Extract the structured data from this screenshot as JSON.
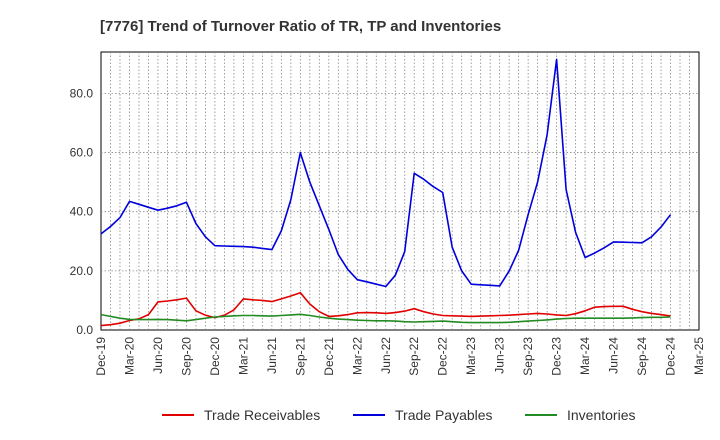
{
  "chart_data": {
    "type": "line",
    "title": "[7776]  Trend of Turnover Ratio of TR, TP and Inventories",
    "xlabel": "",
    "ylabel": "",
    "ylim": [
      0,
      94
    ],
    "yticks": [
      0,
      20,
      40,
      60,
      80
    ],
    "ytick_labels": [
      "0.0",
      "20.0",
      "40.0",
      "60.0",
      "80.0"
    ],
    "x_tick_labels": [
      "Dec-19",
      "Mar-20",
      "Jun-20",
      "Sep-20",
      "Dec-20",
      "Mar-21",
      "Jun-21",
      "Sep-21",
      "Dec-21",
      "Mar-22",
      "Jun-22",
      "Sep-22",
      "Dec-22",
      "Mar-23",
      "Jun-23",
      "Sep-23",
      "Dec-23",
      "Mar-24",
      "Jun-24",
      "Sep-24",
      "Dec-24",
      "Mar-25"
    ],
    "x": [
      "Dec-19",
      "Jan-20",
      "Feb-20",
      "Mar-20",
      "Apr-20",
      "May-20",
      "Jun-20",
      "Jul-20",
      "Aug-20",
      "Sep-20",
      "Oct-20",
      "Nov-20",
      "Dec-20",
      "Jan-21",
      "Feb-21",
      "Mar-21",
      "Apr-21",
      "May-21",
      "Jun-21",
      "Jul-21",
      "Aug-21",
      "Sep-21",
      "Oct-21",
      "Nov-21",
      "Dec-21",
      "Jan-22",
      "Feb-22",
      "Mar-22",
      "Apr-22",
      "May-22",
      "Jun-22",
      "Jul-22",
      "Aug-22",
      "Sep-22",
      "Oct-22",
      "Nov-22",
      "Dec-22",
      "Jan-23",
      "Feb-23",
      "Mar-23",
      "Apr-23",
      "May-23",
      "Jun-23",
      "Jul-23",
      "Aug-23",
      "Sep-23",
      "Oct-23",
      "Nov-23",
      "Dec-23",
      "Jan-24",
      "Feb-24",
      "Mar-24",
      "Apr-24",
      "May-24",
      "Jun-24",
      "Jul-24",
      "Aug-24",
      "Sep-24",
      "Oct-24",
      "Nov-24",
      "Dec-24"
    ],
    "grid": true,
    "legend_position": "bottom",
    "series": [
      {
        "name": "Trade Receivables",
        "color": "#e00000",
        "values": [
          1.5,
          1.8,
          2.3,
          3.2,
          3.8,
          5.2,
          9.5,
          9.8,
          10.2,
          10.8,
          6.5,
          5.0,
          4.2,
          5.0,
          6.8,
          10.5,
          10.2,
          10.0,
          9.6,
          10.5,
          11.5,
          12.6,
          8.8,
          6.2,
          4.6,
          4.8,
          5.2,
          5.8,
          5.9,
          5.8,
          5.6,
          5.9,
          6.4,
          7.2,
          6.2,
          5.4,
          4.9,
          4.8,
          4.7,
          4.6,
          4.7,
          4.8,
          4.9,
          5.0,
          5.2,
          5.4,
          5.6,
          5.4,
          5.1,
          4.9,
          5.5,
          6.5,
          7.7,
          7.9,
          8.0,
          8.0,
          7.0,
          6.2,
          5.6,
          5.2,
          4.7
        ]
      },
      {
        "name": "Trade Payables",
        "color": "#0000dd",
        "values": [
          32.5,
          35.0,
          38.0,
          43.5,
          42.5,
          41.5,
          40.5,
          41.2,
          42.0,
          43.2,
          36.0,
          31.5,
          28.5,
          28.4,
          28.3,
          28.2,
          28.0,
          27.6,
          27.2,
          33.5,
          44.0,
          60.0,
          50.0,
          42.0,
          34.0,
          25.5,
          20.5,
          17.0,
          16.3,
          15.5,
          14.7,
          18.5,
          26.5,
          53.0,
          51.0,
          48.5,
          46.5,
          28.0,
          20.0,
          15.5,
          15.3,
          15.1,
          14.9,
          20.0,
          27.0,
          39.0,
          50.0,
          66.0,
          91.5,
          47.5,
          33.0,
          24.5,
          26.0,
          27.8,
          29.8,
          29.7,
          29.6,
          29.5,
          31.5,
          34.8,
          39.0
        ]
      },
      {
        "name": "Inventories",
        "color": "#228b22",
        "values": [
          5.2,
          4.6,
          4.0,
          3.6,
          3.5,
          3.5,
          3.6,
          3.5,
          3.3,
          3.1,
          3.5,
          4.0,
          4.4,
          4.6,
          4.8,
          4.9,
          4.9,
          4.8,
          4.7,
          4.9,
          5.1,
          5.3,
          4.9,
          4.4,
          4.0,
          3.7,
          3.5,
          3.3,
          3.2,
          3.1,
          3.1,
          3.0,
          2.8,
          2.7,
          2.8,
          2.9,
          3.0,
          2.8,
          2.6,
          2.5,
          2.5,
          2.5,
          2.5,
          2.6,
          2.8,
          3.0,
          3.2,
          3.4,
          3.7,
          3.9,
          4.0,
          4.0,
          4.0,
          4.0,
          4.0,
          4.0,
          4.1,
          4.2,
          4.3,
          4.3,
          4.4
        ]
      }
    ]
  }
}
